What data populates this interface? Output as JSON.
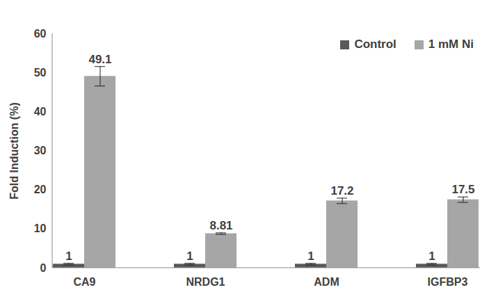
{
  "chart_data": {
    "type": "bar",
    "y_label": "Fold Induction (%)",
    "categories": [
      "CA9",
      "NRDG1",
      "ADM",
      "IGFBP3"
    ],
    "series": [
      {
        "name": "Control",
        "color": "#595959",
        "values": [
          1,
          1,
          1,
          1
        ],
        "errors": [
          0.2,
          0.2,
          0.2,
          0.2
        ]
      },
      {
        "name": "1 mM Ni",
        "color": "#a6a6a6",
        "values": [
          49.1,
          8.81,
          17.2,
          17.5
        ],
        "errors": [
          2.5,
          0.2,
          0.7,
          0.7
        ]
      }
    ],
    "ylim": [
      0,
      60
    ],
    "yticks": [
      0,
      10,
      20,
      30,
      40,
      50,
      60
    ],
    "grid": false,
    "legend": "top-right",
    "data_labels": true
  }
}
